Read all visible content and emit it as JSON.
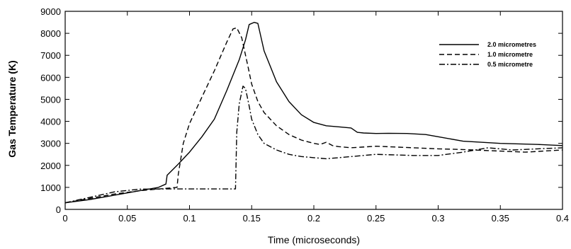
{
  "chart_data": {
    "type": "line",
    "xlabel": "Time (microseconds)",
    "ylabel": "Gas Temperature (K)",
    "xlim": [
      0,
      0.4
    ],
    "ylim": [
      0,
      9000
    ],
    "xticks": [
      0,
      0.05,
      0.1,
      0.15,
      0.2,
      0.25,
      0.3,
      0.35,
      0.4
    ],
    "xtick_labels": [
      "0",
      "0.05",
      "0.1",
      "0.15",
      "0.2",
      "0.25",
      "0.3",
      "0.35",
      "0.4"
    ],
    "yticks": [
      0,
      1000,
      2000,
      3000,
      4000,
      5000,
      6000,
      7000,
      8000,
      9000
    ],
    "ytick_labels": [
      "0",
      "1000",
      "2000",
      "3000",
      "4000",
      "5000",
      "6000",
      "7000",
      "8000",
      "9000"
    ],
    "grid": false,
    "legend_position": "top-right",
    "series": [
      {
        "name": "2.0 micrometres",
        "style": "solid",
        "x": [
          0,
          0.02,
          0.04,
          0.06,
          0.075,
          0.081,
          0.082,
          0.09,
          0.1,
          0.11,
          0.12,
          0.13,
          0.14,
          0.145,
          0.148,
          0.152,
          0.155,
          0.16,
          0.17,
          0.18,
          0.19,
          0.2,
          0.21,
          0.22,
          0.23,
          0.235,
          0.24,
          0.25,
          0.26,
          0.275,
          0.29,
          0.3,
          0.32,
          0.35,
          0.38,
          0.4
        ],
        "y": [
          300,
          450,
          650,
          850,
          1000,
          1150,
          1550,
          2000,
          2600,
          3300,
          4100,
          5400,
          6800,
          7700,
          8400,
          8500,
          8450,
          7200,
          5800,
          4900,
          4300,
          3950,
          3800,
          3750,
          3700,
          3500,
          3470,
          3450,
          3460,
          3450,
          3400,
          3300,
          3100,
          3000,
          2950,
          2900
        ]
      },
      {
        "name": "1.0 micrometre",
        "style": "dashed",
        "x": [
          0,
          0.02,
          0.04,
          0.06,
          0.08,
          0.09,
          0.091,
          0.095,
          0.1,
          0.11,
          0.12,
          0.13,
          0.135,
          0.138,
          0.142,
          0.147,
          0.15,
          0.155,
          0.16,
          0.17,
          0.18,
          0.19,
          0.2,
          0.205,
          0.21,
          0.215,
          0.22,
          0.23,
          0.25,
          0.28,
          0.3,
          0.32,
          0.35,
          0.37,
          0.4
        ],
        "y": [
          300,
          500,
          700,
          850,
          950,
          1000,
          1600,
          3000,
          3900,
          5100,
          6300,
          7600,
          8200,
          8250,
          7800,
          6500,
          5700,
          4900,
          4400,
          3800,
          3400,
          3150,
          3000,
          2950,
          3050,
          2900,
          2850,
          2800,
          2870,
          2800,
          2750,
          2720,
          2650,
          2600,
          2700
        ]
      },
      {
        "name": "0.5 micrometre",
        "style": "dashdot",
        "x": [
          0,
          0.02,
          0.04,
          0.06,
          0.08,
          0.1,
          0.12,
          0.135,
          0.137,
          0.138,
          0.14,
          0.143,
          0.145,
          0.148,
          0.15,
          0.155,
          0.16,
          0.17,
          0.18,
          0.19,
          0.2,
          0.21,
          0.22,
          0.25,
          0.28,
          0.3,
          0.32,
          0.34,
          0.36,
          0.38,
          0.4
        ],
        "y": [
          300,
          550,
          800,
          920,
          930,
          930,
          930,
          930,
          930,
          3500,
          4800,
          5600,
          5500,
          4700,
          4100,
          3400,
          3000,
          2700,
          2500,
          2400,
          2350,
          2300,
          2350,
          2500,
          2450,
          2450,
          2600,
          2800,
          2700,
          2750,
          2800
        ]
      }
    ]
  }
}
